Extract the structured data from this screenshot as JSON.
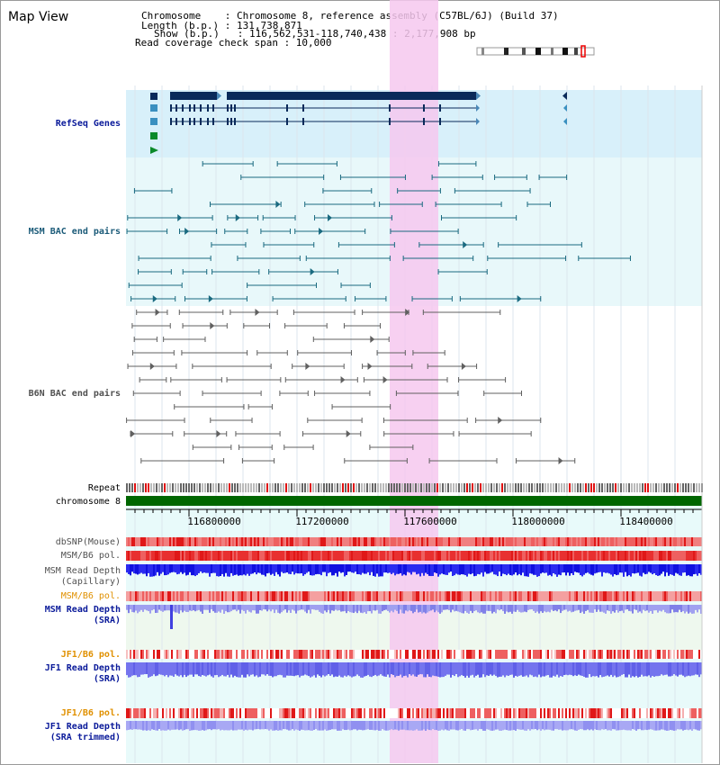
{
  "title": "Map View",
  "header": {
    "lines": [
      "Chromosome    : Chromosome 8, reference assembly (C57BL/6J) (Build 37)",
      "Length (b.p.) : 131,738,871",
      "Show (b.p.)   : 116,562,531-118,740,438 : 2,177,908 bp",
      "Read coverage check span : 10,000"
    ]
  },
  "tracks": {
    "refseq": "RefSeq Genes",
    "msm_bac": "MSM BAC end pairs",
    "b6n_bac": "B6N BAC end pairs",
    "repeat": "Repeat",
    "chromosome": "chromosome 8",
    "dbsnp": "dbSNP(Mouse)",
    "msm_b6_pol_1": "MSM/B6 pol.",
    "msm_depth_cap_1": "MSM Read Depth",
    "msm_depth_cap_2": "(Capillary)",
    "msm_b6_pol_2": "MSM/B6 pol.",
    "msm_depth_sra_1": "MSM Read Depth",
    "msm_depth_sra_2": "(SRA)",
    "jf1_b6_pol_1": "JF1/B6 pol.",
    "jf1_depth_sra_1": "JF1 Read Depth",
    "jf1_depth_sra_2": "(SRA)",
    "jf1_b6_pol_2": "JF1/B6 pol.",
    "jf1_depth_trim_1": "JF1 Read Depth",
    "jf1_depth_trim_2": "(SRA trimmed)"
  },
  "ruler": {
    "ticks": [
      "116800000",
      "117200000",
      "117600000",
      "118000000",
      "118400000"
    ]
  },
  "colors": {
    "refseq_bg": "#d8f0fa",
    "msm_bg": "#e8f8fa",
    "highlight": "#f6c8ee",
    "gene": "#0a2a5a",
    "msm_pair": "#1a6a80",
    "b6n_pair": "#606060",
    "chrom_bar": "#006600",
    "depth_blue": "#1a1ae8",
    "depth_light": "#8080f0",
    "pol_red": "#e02020",
    "label_navy": "#0a1a9a",
    "label_teal": "#1a5a78",
    "label_gray": "#505050",
    "label_orange": "#e09000"
  }
}
